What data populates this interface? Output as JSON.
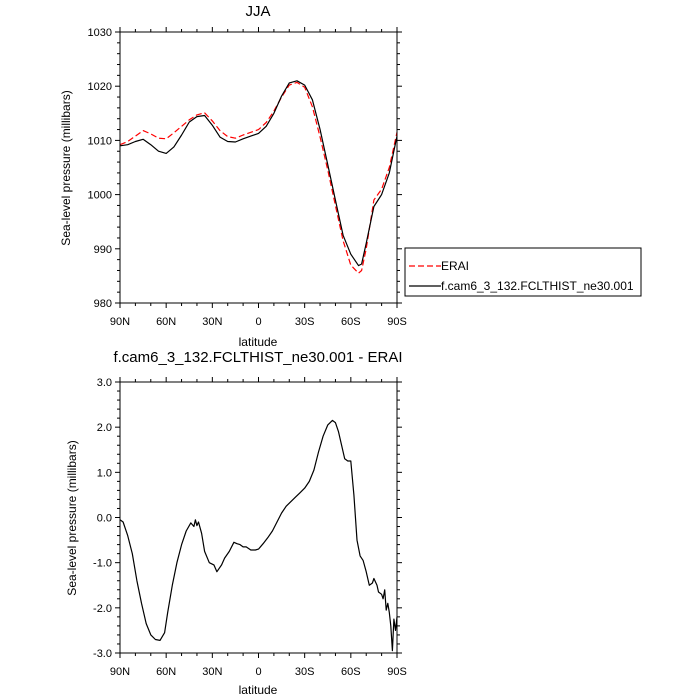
{
  "chart_data": [
    {
      "type": "line",
      "title": "JJA",
      "xlabel": "latitude",
      "ylabel": "Sea-level pressure (millibars)",
      "xlim": [
        90,
        -90
      ],
      "ylim": [
        980,
        1030
      ],
      "yticks": [
        "980",
        "990",
        "1000",
        "1010",
        "1020",
        "1030"
      ],
      "xtick_values": [
        90,
        60,
        30,
        0,
        -30,
        -60,
        -90
      ],
      "xtick_labels": [
        "90N",
        "60N",
        "30N",
        "0",
        "30S",
        "60S",
        "90S"
      ],
      "grid": false,
      "legend": "right",
      "series": [
        {
          "name": "ERAI",
          "color": "#ff0000",
          "dash": true,
          "x": [
            90,
            85,
            80,
            75,
            70,
            65,
            60,
            55,
            50,
            45,
            40,
            35,
            30,
            25,
            20,
            15,
            10,
            5,
            0,
            -5,
            -10,
            -15,
            -20,
            -25,
            -30,
            -35,
            -40,
            -45,
            -50,
            -55,
            -60,
            -65,
            -67,
            -70,
            -75,
            -80,
            -85,
            -90
          ],
          "y": [
            1009.2,
            1009.8,
            1010.8,
            1011.8,
            1011.2,
            1010.4,
            1010.3,
            1011.4,
            1012.6,
            1013.8,
            1014.7,
            1015.1,
            1013.6,
            1011.8,
            1010.7,
            1010.4,
            1011.0,
            1011.5,
            1012.0,
            1013.3,
            1015.4,
            1018.0,
            1020.2,
            1020.7,
            1019.8,
            1016.2,
            1010.6,
            1004.5,
            998.0,
            991.5,
            987.0,
            985.5,
            986.0,
            990.0,
            999.0,
            1001.0,
            1005.0,
            1011.5
          ]
        },
        {
          "name": "f.cam6_3_132.FCLTHIST_ne30.001",
          "color": "#000000",
          "dash": false,
          "x": [
            90,
            85,
            80,
            75,
            70,
            65,
            60,
            55,
            50,
            45,
            40,
            35,
            30,
            25,
            20,
            15,
            10,
            5,
            0,
            -5,
            -10,
            -15,
            -20,
            -25,
            -30,
            -35,
            -40,
            -45,
            -50,
            -55,
            -60,
            -65,
            -67,
            -70,
            -75,
            -80,
            -85,
            -90
          ],
          "y": [
            1009.0,
            1009.2,
            1009.8,
            1010.2,
            1009.2,
            1008.0,
            1007.6,
            1008.8,
            1011.0,
            1013.4,
            1014.4,
            1014.6,
            1012.8,
            1010.6,
            1009.8,
            1009.7,
            1010.3,
            1010.8,
            1011.3,
            1012.6,
            1015.0,
            1018.2,
            1020.6,
            1021.0,
            1020.2,
            1017.5,
            1012.0,
            1005.5,
            999.0,
            992.5,
            989.0,
            986.9,
            987.2,
            991.0,
            997.8,
            1000.0,
            1004.0,
            1010.8
          ]
        }
      ]
    },
    {
      "type": "line",
      "title": "f.cam6_3_132.FCLTHIST_ne30.001 - ERAI",
      "xlabel": "latitude",
      "ylabel": "Sea-level pressure (millibars)",
      "xlim": [
        90,
        -90
      ],
      "ylim": [
        -3,
        3
      ],
      "yticks": [
        "-3.0",
        "-2.0",
        "-1.0",
        "0.0",
        "1.0",
        "2.0",
        "3.0"
      ],
      "xtick_values": [
        90,
        60,
        30,
        0,
        -30,
        -60,
        -90
      ],
      "xtick_labels": [
        "90N",
        "60N",
        "30N",
        "0",
        "30S",
        "60S",
        "90S"
      ],
      "grid": false,
      "series": [
        {
          "color": "#000000",
          "x": [
            90,
            88,
            85,
            82,
            79,
            76,
            73,
            70,
            67,
            64,
            61,
            59,
            56,
            53,
            50,
            47,
            44,
            42,
            41,
            40,
            39,
            37,
            35,
            32,
            29,
            27,
            24,
            22,
            19,
            16,
            14,
            12,
            10,
            8,
            5,
            2,
            0,
            -3,
            -6,
            -9,
            -12,
            -15,
            -18,
            -21,
            -24,
            -27,
            -30,
            -33,
            -36,
            -39,
            -42,
            -45,
            -48,
            -50,
            -52,
            -54,
            -56,
            -58,
            -60,
            -62,
            -64,
            -66,
            -68,
            -70,
            -72,
            -74,
            -75,
            -77,
            -78,
            -80,
            -81,
            -82,
            -83,
            -84,
            -85,
            -86,
            -87,
            -88,
            -89,
            -90
          ],
          "y": [
            -0.05,
            -0.1,
            -0.4,
            -0.8,
            -1.4,
            -1.9,
            -2.35,
            -2.6,
            -2.7,
            -2.72,
            -2.55,
            -2.1,
            -1.5,
            -1.0,
            -0.6,
            -0.3,
            -0.12,
            -0.2,
            -0.05,
            -0.18,
            -0.1,
            -0.35,
            -0.75,
            -1.0,
            -1.05,
            -1.2,
            -1.05,
            -0.9,
            -0.75,
            -0.55,
            -0.58,
            -0.6,
            -0.65,
            -0.65,
            -0.72,
            -0.72,
            -0.7,
            -0.58,
            -0.45,
            -0.3,
            -0.1,
            0.1,
            0.25,
            0.35,
            0.45,
            0.55,
            0.65,
            0.8,
            1.05,
            1.45,
            1.8,
            2.05,
            2.15,
            2.1,
            1.9,
            1.6,
            1.3,
            1.25,
            1.25,
            0.5,
            -0.5,
            -0.85,
            -0.95,
            -1.2,
            -1.5,
            -1.45,
            -1.35,
            -1.5,
            -1.65,
            -1.7,
            -1.8,
            -1.6,
            -2.05,
            -1.9,
            -2.1,
            -2.4,
            -2.95,
            -2.25,
            -2.5,
            -2.2
          ]
        }
      ]
    }
  ]
}
